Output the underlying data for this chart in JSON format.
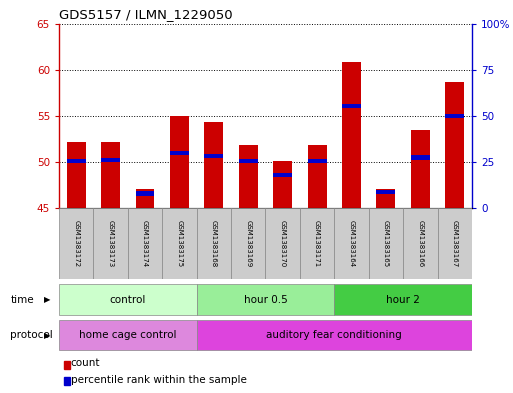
{
  "title": "GDS5157 / ILMN_1229050",
  "samples": [
    "GSM1383172",
    "GSM1383173",
    "GSM1383174",
    "GSM1383175",
    "GSM1383168",
    "GSM1383169",
    "GSM1383170",
    "GSM1383171",
    "GSM1383164",
    "GSM1383165",
    "GSM1383166",
    "GSM1383167"
  ],
  "counts": [
    52.2,
    52.2,
    47.1,
    55.0,
    54.3,
    51.8,
    50.1,
    51.8,
    60.8,
    47.1,
    53.5,
    58.7
  ],
  "percentiles": [
    25.5,
    26.0,
    8.0,
    30.0,
    28.5,
    25.5,
    18.0,
    25.5,
    55.5,
    9.0,
    27.5,
    50.0
  ],
  "ymin": 45,
  "ymax": 65,
  "yticks_left": [
    45,
    50,
    55,
    60,
    65
  ],
  "yticks_right": [
    0,
    25,
    50,
    75,
    100
  ],
  "bar_color": "#cc0000",
  "percentile_color": "#0000cc",
  "bar_width": 0.55,
  "time_groups": [
    {
      "label": "control",
      "start": 0,
      "end": 4,
      "color": "#ccffcc"
    },
    {
      "label": "hour 0.5",
      "start": 4,
      "end": 8,
      "color": "#99ee99"
    },
    {
      "label": "hour 2",
      "start": 8,
      "end": 12,
      "color": "#44cc44"
    }
  ],
  "protocol_groups": [
    {
      "label": "home cage control",
      "start": 0,
      "end": 4,
      "color": "#dd88dd"
    },
    {
      "label": "auditory fear conditioning",
      "start": 4,
      "end": 12,
      "color": "#dd44dd"
    }
  ],
  "time_label": "time",
  "protocol_label": "protocol",
  "left_axis_color": "#cc0000",
  "right_axis_color": "#0000cc",
  "grid_color": "#000000",
  "background_color": "#ffffff",
  "sample_box_color": "#cccccc",
  "border_color": "#888888"
}
